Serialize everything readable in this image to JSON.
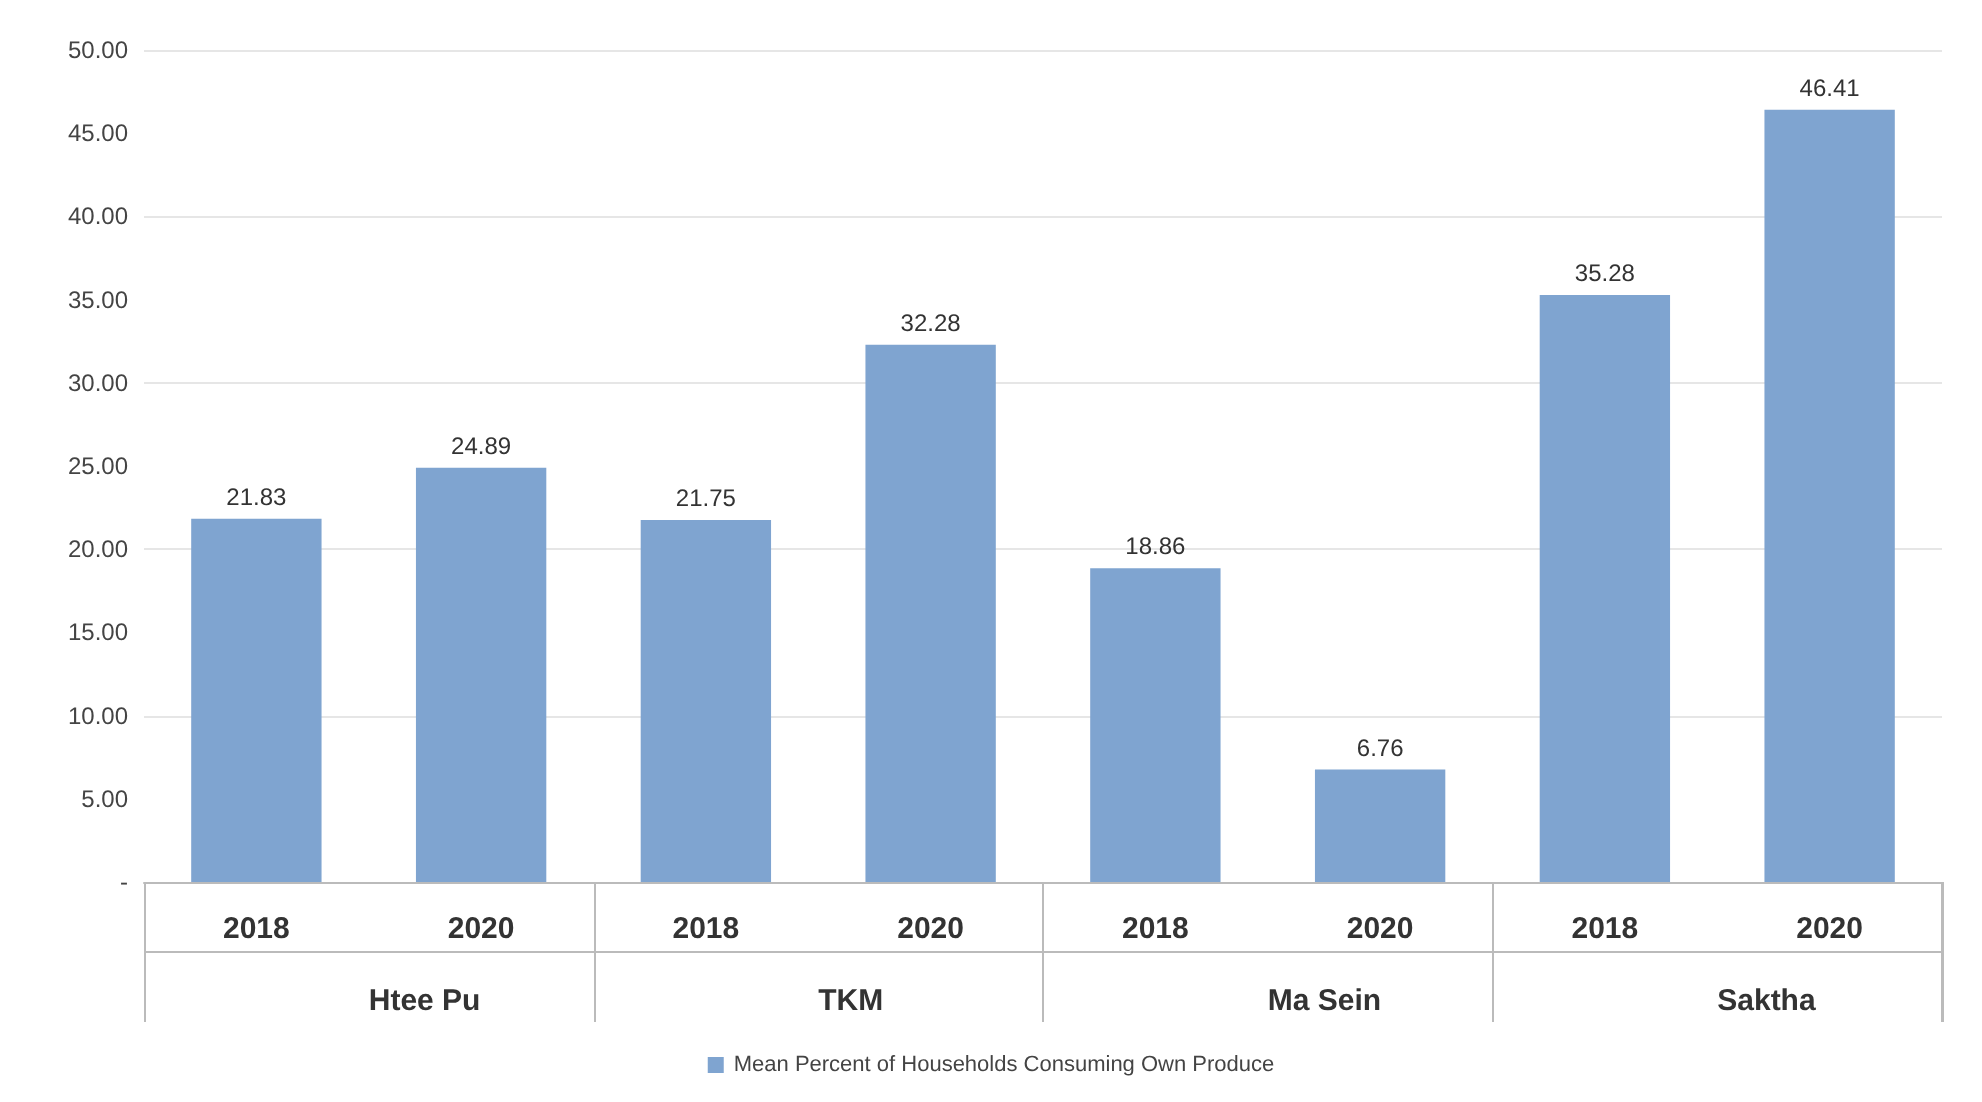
{
  "chart_data": {
    "type": "bar",
    "categories": [
      "2018",
      "2020",
      "2018",
      "2020",
      "2018",
      "2020",
      "2018",
      "2020"
    ],
    "series": [
      {
        "name": "Mean Percent of Households Consuming Own Produce",
        "color": "#7fa4d0",
        "values": [
          21.83,
          24.89,
          21.75,
          32.28,
          18.86,
          6.76,
          35.28,
          46.41
        ]
      }
    ],
    "annotations": [
      "Htee Pu",
      "TKM",
      "Ma Sein",
      "Saktha"
    ],
    "ylim": [
      0,
      50
    ],
    "yticks": [
      {
        "value": 0,
        "label": "-"
      },
      {
        "value": 5,
        "label": "5.00"
      },
      {
        "value": 10,
        "label": "10.00"
      },
      {
        "value": 15,
        "label": "15.00"
      },
      {
        "value": 20,
        "label": "20.00"
      },
      {
        "value": 25,
        "label": "25.00"
      },
      {
        "value": 30,
        "label": "30.00"
      },
      {
        "value": 35,
        "label": "35.00"
      },
      {
        "value": 40,
        "label": "40.00"
      },
      {
        "value": 45,
        "label": "45.00"
      },
      {
        "value": 50,
        "label": "50.00"
      }
    ],
    "grid": "y",
    "data_labels": true,
    "legend": "bottom"
  }
}
